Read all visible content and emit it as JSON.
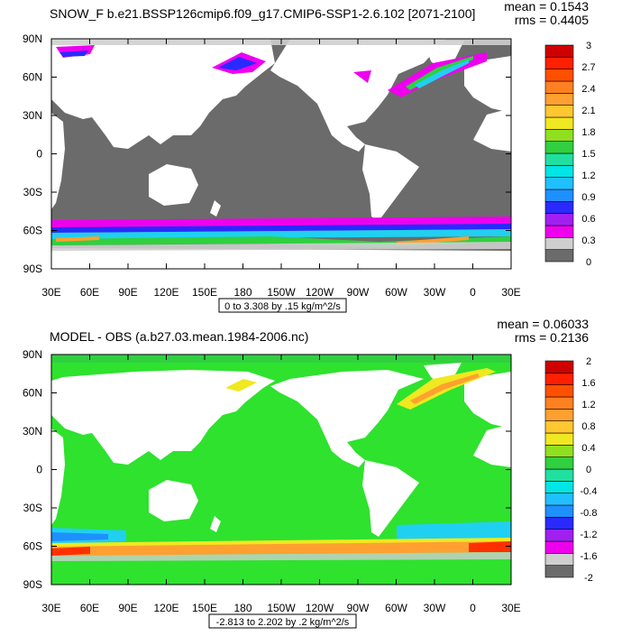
{
  "panels": [
    {
      "title": "SNOW_F b.e21.BSSP126cmip6.f09_g17.CMIP6-SSP1-2.6.102 [2071-2100]",
      "mean_text": "mean = 0.1543",
      "rms_text": "rms = 0.4405",
      "range_text": "0 to 3.308 by .15 kg/m^2/s",
      "ocean_color": "#6b6b6b",
      "land_color": "#ffffff",
      "colorbar_labels": [
        "3",
        "2.7",
        "2.4",
        "2.1",
        "1.8",
        "1.5",
        "1.2",
        "0.9",
        "0.6",
        "0.3",
        "0"
      ],
      "colorbar_colors": [
        "#6b6b6b",
        "#cfcfcf",
        "#ee00ee",
        "#a020f0",
        "#2a2aff",
        "#1e90ff",
        "#20c0ff",
        "#00e5e5",
        "#20e0a0",
        "#30d040",
        "#90e020",
        "#f0e820",
        "#ffc830",
        "#ffa030",
        "#ff8020",
        "#ff5000",
        "#ff2000",
        "#d00000"
      ]
    },
    {
      "title": "MODEL - OBS (a.b27.03.mean.1984-2006.nc)",
      "mean_text": "mean = 0.06033",
      "rms_text": "rms = 0.2136",
      "range_text": "-2.813 to 2.202 by .2 kg/m^2/s",
      "ocean_color": "#2ee22e",
      "land_color": "#ffffff",
      "colorbar_labels": [
        "2",
        "1.6",
        "1.2",
        "0.8",
        "0.4",
        "0",
        "-0.4",
        "-0.8",
        "-1.2",
        "-1.6",
        "-2"
      ],
      "colorbar_colors": [
        "#6b6b6b",
        "#cfcfcf",
        "#ee00ee",
        "#a020f0",
        "#2a2aff",
        "#1e90ff",
        "#20c0ff",
        "#00e5e5",
        "#20e0a0",
        "#30d040",
        "#90e020",
        "#f0e820",
        "#ffc830",
        "#ffa030",
        "#ff8020",
        "#ff5000",
        "#ff2000",
        "#d00000"
      ]
    }
  ],
  "x_tick_labels": [
    "30E",
    "60E",
    "90E",
    "120E",
    "150E",
    "180",
    "150W",
    "120W",
    "90W",
    "60W",
    "30W",
    "0",
    "30E"
  ],
  "y_tick_labels": [
    "90N",
    "60N",
    "30N",
    "0",
    "30S",
    "60S",
    "90S"
  ],
  "band_colors": {
    "magenta": "#ee00ee",
    "purple": "#a020f0",
    "blue": "#2a2aff",
    "skyblue": "#1e90ff",
    "cyan": "#20d0f0",
    "green": "#30d040",
    "yellow": "#f0e820",
    "orange": "#ffa030",
    "red": "#ff3000",
    "lightgray": "#cfcfcf"
  }
}
